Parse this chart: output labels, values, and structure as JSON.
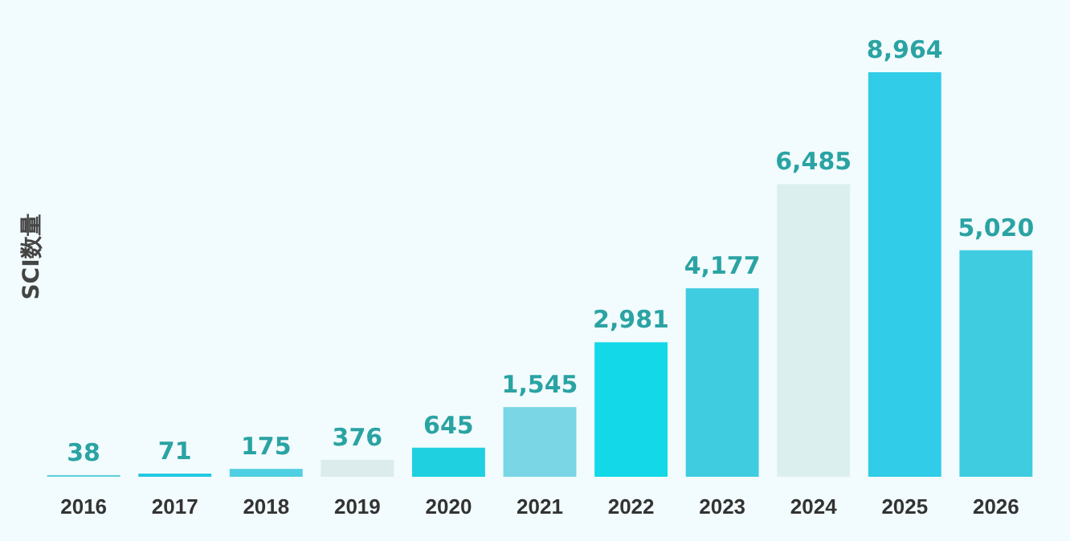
{
  "chart_data": {
    "type": "bar",
    "ylabel": "SCI数量",
    "categories": [
      "2016",
      "2017",
      "2018",
      "2019",
      "2020",
      "2021",
      "2022",
      "2023",
      "2024",
      "2025",
      "2026"
    ],
    "values": [
      38,
      71,
      175,
      376,
      645,
      1545,
      2981,
      4177,
      6485,
      8964,
      5020
    ],
    "value_labels": [
      "38",
      "71",
      "175",
      "376",
      "645",
      "1,545",
      "2,981",
      "4,177",
      "6,485",
      "8,964",
      "5,020"
    ],
    "colors": [
      "#5fd0e0",
      "#22c8e0",
      "#4ed0e2",
      "#dcecec",
      "#1ed0e0",
      "#7ad6e4",
      "#12d8e8",
      "#40cce0",
      "#dcefef",
      "#30cce8",
      "#40cce0"
    ]
  }
}
